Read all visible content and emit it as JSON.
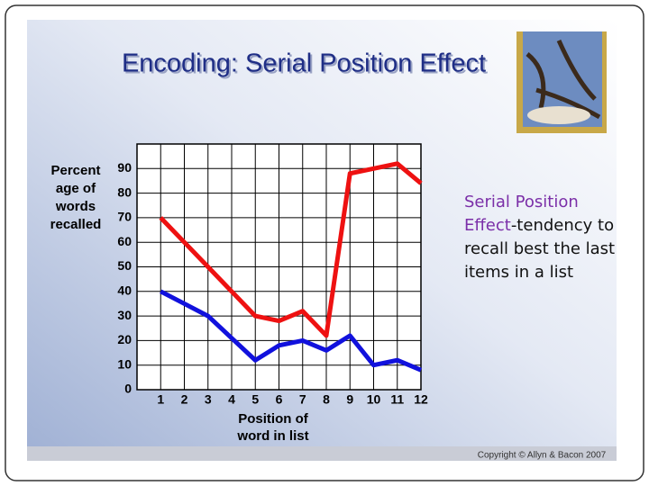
{
  "title": "Encoding: Serial Position Effect",
  "side_note": {
    "term": "Serial Position Effect",
    "text": "-tendency to recall best the last items in a list"
  },
  "copyright": "Copyright © Allyn & Bacon 2007",
  "chart_data": {
    "type": "line",
    "ylabel": [
      "Percent",
      "age of",
      "words",
      "recalled"
    ],
    "xlabel": [
      "Position of",
      "word in list"
    ],
    "x": [
      1,
      2,
      3,
      4,
      5,
      6,
      7,
      8,
      9,
      10,
      11,
      12
    ],
    "series": [
      {
        "color": "#ee1111",
        "values": [
          70,
          60,
          50,
          40,
          30,
          28,
          32,
          22,
          88,
          90,
          92,
          84
        ]
      },
      {
        "color": "#1111dd",
        "values": [
          40,
          35,
          30,
          21,
          12,
          18,
          20,
          16,
          22,
          10,
          12,
          8
        ]
      }
    ],
    "xlim": [
      0,
      12
    ],
    "xticks": [
      1,
      2,
      3,
      4,
      5,
      6,
      7,
      8,
      9,
      10,
      11,
      12
    ],
    "ylim": [
      0,
      100
    ],
    "yticks": [
      0,
      10,
      20,
      30,
      40,
      50,
      60,
      70,
      80,
      90
    ],
    "grid": true
  }
}
